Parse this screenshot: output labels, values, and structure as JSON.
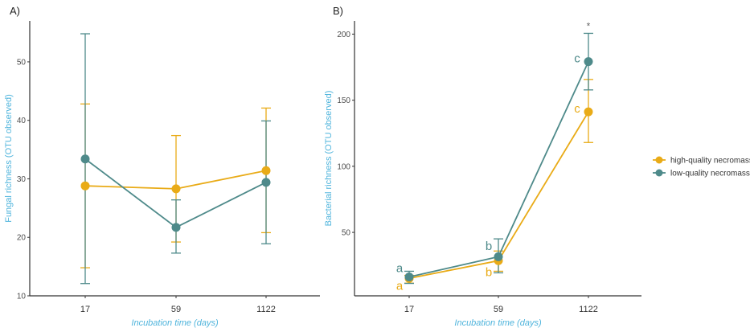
{
  "colors": {
    "high": "#e9ab17",
    "low": "#4e8a8a",
    "axis_title": "#4fb4dc",
    "axis": "#333333"
  },
  "legend": {
    "position": "right",
    "items": [
      {
        "label": "high-quality necromass",
        "series": "high"
      },
      {
        "label": "low-quality necromass",
        "series": "low"
      }
    ]
  },
  "chart_data": [
    {
      "type": "line",
      "panel_label": "A)",
      "title": "",
      "xlabel": "Incubation time (days)",
      "ylabel": "Fungal richness (OTU observed)",
      "categories": [
        "17",
        "59",
        "1122"
      ],
      "ylim": [
        10,
        57
      ],
      "yticks": [
        10,
        20,
        30,
        40,
        50
      ],
      "ytick_labels": [
        "10",
        "20",
        "30",
        "40",
        "50"
      ],
      "grid": false,
      "series": [
        {
          "name": "high-quality necromass",
          "key": "high",
          "values": [
            28.8,
            28.3,
            31.4
          ],
          "err_low": [
            14.8,
            19.2,
            20.8
          ],
          "err_high": [
            42.8,
            37.4,
            42.1
          ],
          "letters": [
            "",
            "",
            ""
          ]
        },
        {
          "name": "low-quality necromass",
          "key": "low",
          "values": [
            33.4,
            21.7,
            29.4
          ],
          "err_low": [
            12.1,
            17.3,
            18.9
          ],
          "err_high": [
            54.8,
            26.4,
            39.9
          ],
          "letters": [
            "",
            "",
            ""
          ]
        }
      ],
      "annotations": []
    },
    {
      "type": "line",
      "panel_label": "B)",
      "title": "",
      "xlabel": "Incubation time (days)",
      "ylabel": "Bacterial richness (OTU observed)",
      "categories": [
        "17",
        "59",
        "1122"
      ],
      "ylim": [
        2,
        210
      ],
      "yticks": [
        50,
        100,
        150,
        200
      ],
      "ytick_labels": [
        "50",
        "100",
        "150",
        "200"
      ],
      "grid": false,
      "series": [
        {
          "name": "high-quality necromass",
          "key": "high",
          "values": [
            15.2,
            28.6,
            141.2
          ],
          "err_low": [
            11.6,
            20.6,
            118.0
          ],
          "err_high": [
            17.5,
            35.9,
            165.7
          ],
          "letters": [
            "a",
            "b",
            "c"
          ]
        },
        {
          "name": "low-quality necromass",
          "key": "low",
          "values": [
            16.3,
            31.6,
            179.2
          ],
          "err_low": [
            11.4,
            19.4,
            157.8
          ],
          "err_high": [
            20.6,
            45.1,
            200.6
          ],
          "letters": [
            "a",
            "b",
            "c"
          ]
        }
      ],
      "annotations": [
        {
          "text": "*",
          "category": "1122"
        }
      ]
    }
  ]
}
